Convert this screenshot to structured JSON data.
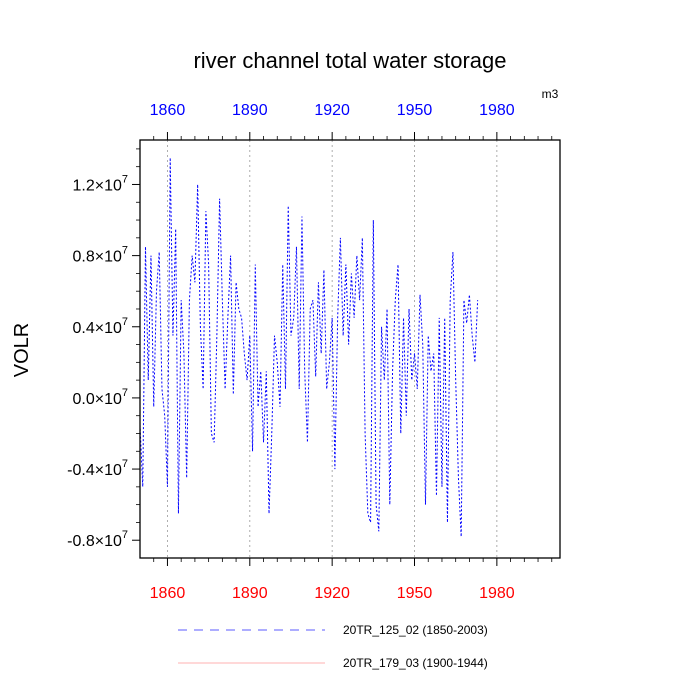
{
  "chart_data": {
    "type": "line",
    "title": "river channel total water storage",
    "units": "m3",
    "ylabel": "VOLR",
    "xlabel": "",
    "xlim": [
      1850,
      2003
    ],
    "ylim": [
      -9000000.0,
      14500000.0
    ],
    "x_ticks": [
      1860,
      1890,
      1920,
      1950,
      1980
    ],
    "x_tick_labels": [
      "1860",
      "1890",
      "1920",
      "1950",
      "1980"
    ],
    "x_tick_color_top": "#0000ff",
    "x_tick_color_bottom": "#ff0000",
    "y_ticks": [
      -8000000.0,
      -4000000.0,
      0.0,
      4000000.0,
      8000000.0,
      12000000.0
    ],
    "y_tick_mantissas": [
      "-0.8",
      "-0.4",
      "0.0",
      "0.4",
      "0.8",
      "1.2"
    ],
    "y_tick_times": "×10",
    "y_tick_exponent": "7",
    "grid": "vertical dashed at x ticks",
    "series": [
      {
        "name": "20TR_125_02 (1850-2003)",
        "color": "#0000ff",
        "style": "dashed",
        "x_start": 1850,
        "values": [
          -1500000.0,
          -5000000.0,
          8500000.0,
          1000000.0,
          8000000.0,
          -500000.0,
          6000000.0,
          8200000.0,
          500000.0,
          -1000000.0,
          -5000000.0,
          13500000.0,
          3500000.0,
          9500000.0,
          -6500000.0,
          5500000.0,
          2500000.0,
          -4500000.0,
          5500000.0,
          8000000.0,
          6500000.0,
          12000000.0,
          4000000.0,
          500000.0,
          10500000.0,
          7500000.0,
          -2000000.0,
          -2500000.0,
          3500000.0,
          11200000.0,
          5500000.0,
          500000.0,
          4500000.0,
          8000000.0,
          200000.0,
          6500000.0,
          5000000.0,
          4500000.0,
          2500000.0,
          1000000.0,
          3500000.0,
          -3000000.0,
          7500000.0,
          -500000.0,
          1500000.0,
          -2500000.0,
          1500000.0,
          -6500000.0,
          -2000000.0,
          3500000.0,
          2000000.0,
          -500000.0,
          7500000.0,
          500000.0,
          10800000.0,
          3500000.0,
          4500000.0,
          8500000.0,
          500000.0,
          10200000.0,
          1500000.0,
          -2500000.0,
          5000000.0,
          5500000.0,
          1200000.0,
          6500000.0,
          2500000.0,
          7200000.0,
          500000.0,
          2000000.0,
          4500000.0,
          -4000000.0,
          4500000.0,
          9000000.0,
          3500000.0,
          7500000.0,
          3000000.0,
          7000000.0,
          4500000.0,
          8000000.0,
          5500000.0,
          9000000.0,
          -2000000.0,
          -6500000.0,
          -7000000.0,
          10000000.0,
          -6000000.0,
          -7500000.0,
          4000000.0,
          1000000.0,
          5000000.0,
          -6000000.0,
          1500000.0,
          5500000.0,
          7500000.0,
          -2000000.0,
          4500000.0,
          -1000000.0,
          5000000.0,
          1000000.0,
          2500000.0,
          500000.0,
          5800000.0,
          3000000.0,
          -6000000.0,
          3500000.0,
          1500000.0,
          2500000.0,
          -5500000.0,
          4500000.0,
          -5000000.0,
          4500000.0,
          -7000000.0,
          5500000.0,
          8200000.0,
          1000000.0,
          -4500000.0,
          -7800000.0,
          5500000.0,
          4200000.0,
          5800000.0,
          3500000.0,
          2000000.0,
          5500000.0
        ]
      },
      {
        "name": "20TR_179_03 (1900-1944)",
        "color": "#ff0000",
        "style": "solid",
        "values": []
      }
    ],
    "legend_position": "bottom"
  }
}
